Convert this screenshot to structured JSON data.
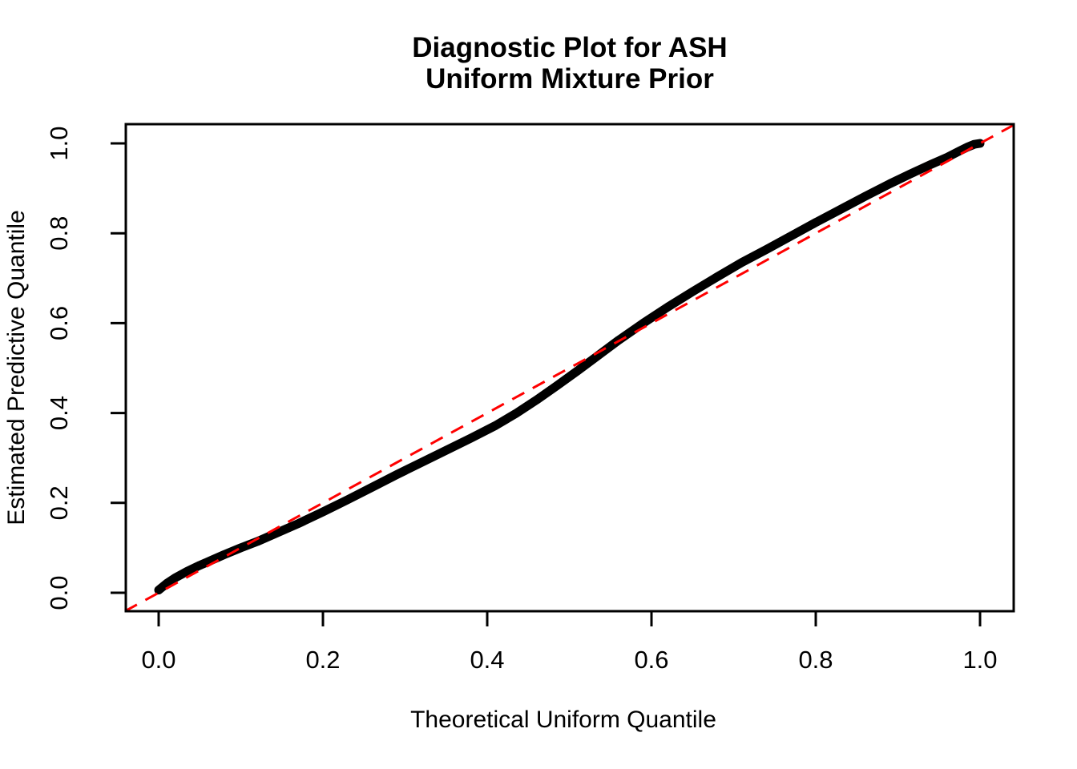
{
  "title": {
    "line1": "Diagnostic Plot for ASH",
    "line2": "Uniform Mixture Prior"
  },
  "colors": {
    "curve": "#000000",
    "reference_line": "#ff0000",
    "axis": "#000000",
    "text": "#000000",
    "background": "#ffffff"
  },
  "chart_data": {
    "type": "line",
    "title": "Diagnostic Plot for ASH\nUniform Mixture Prior",
    "xlabel": "Theoretical Uniform Quantile",
    "ylabel": "Estimated Predictive Quantile",
    "xlim": [
      -0.041,
      1.041
    ],
    "ylim": [
      -0.041,
      1.043
    ],
    "x_ticks": [
      "0.0",
      "0.2",
      "0.4",
      "0.6",
      "0.8",
      "1.0"
    ],
    "x_tick_values": [
      0.0,
      0.2,
      0.4,
      0.6,
      0.8,
      1.0
    ],
    "y_ticks": [
      "0.0",
      "0.2",
      "0.4",
      "0.6",
      "0.8",
      "1.0"
    ],
    "y_tick_values": [
      0.0,
      0.2,
      0.4,
      0.6,
      0.8,
      1.0
    ],
    "grid": false,
    "legend": "none",
    "series": [
      {
        "name": "estimated-predictive-quantile-curve",
        "style": "solid",
        "color": "#000000",
        "x": [
          0.0,
          0.01,
          0.02,
          0.035,
          0.05,
          0.065,
          0.08,
          0.1,
          0.12,
          0.145,
          0.17,
          0.2,
          0.23,
          0.26,
          0.29,
          0.32,
          0.35,
          0.38,
          0.41,
          0.435,
          0.46,
          0.485,
          0.51,
          0.535,
          0.56,
          0.59,
          0.62,
          0.65,
          0.68,
          0.71,
          0.74,
          0.77,
          0.8,
          0.83,
          0.86,
          0.89,
          0.915,
          0.94,
          0.96,
          0.975,
          0.985,
          0.993,
          1.0
        ],
        "y": [
          0.006,
          0.021,
          0.033,
          0.048,
          0.061,
          0.073,
          0.085,
          0.1,
          0.114,
          0.134,
          0.154,
          0.18,
          0.207,
          0.235,
          0.263,
          0.29,
          0.317,
          0.344,
          0.372,
          0.399,
          0.429,
          0.461,
          0.494,
          0.528,
          0.562,
          0.6,
          0.636,
          0.67,
          0.703,
          0.735,
          0.764,
          0.794,
          0.824,
          0.853,
          0.882,
          0.91,
          0.932,
          0.953,
          0.969,
          0.983,
          0.992,
          0.998,
          1.0
        ]
      },
      {
        "name": "reference-diagonal",
        "style": "dashed",
        "color": "#ff0000",
        "x": [
          -0.041,
          1.041
        ],
        "y": [
          -0.041,
          1.041
        ]
      }
    ]
  }
}
